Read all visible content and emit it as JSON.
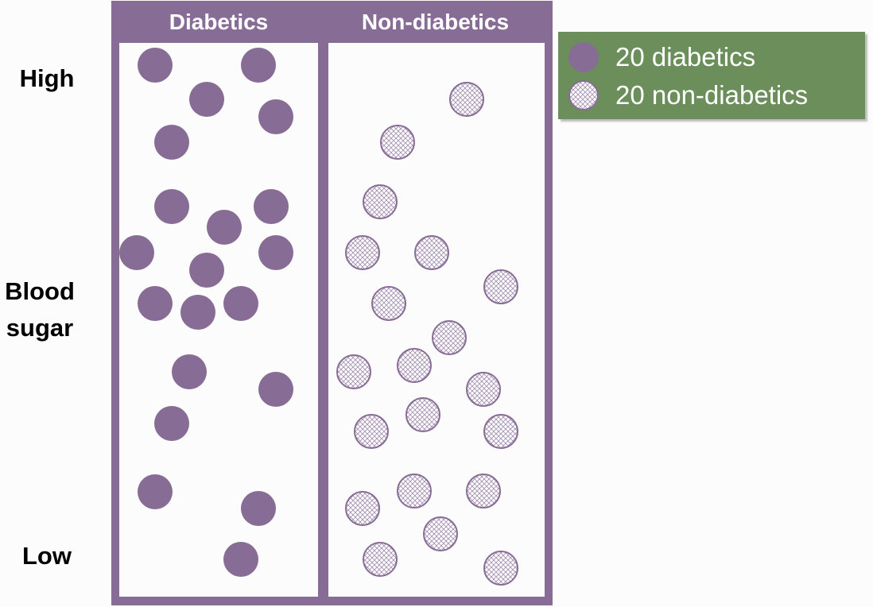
{
  "y_axis": {
    "high_label": "High",
    "middle_label_line1": "Blood",
    "middle_label_line2": "sugar",
    "low_label": "Low"
  },
  "columns": {
    "left_header": "Diabetics",
    "right_header": "Non-diabetics"
  },
  "legend": {
    "diabetics_label": "20 diabetics",
    "non_diabetics_label": "20 non-diabetics"
  },
  "colors": {
    "frame": "#876c95",
    "legend_bg": "#6b8e5a",
    "panel_bg": "#fcfcfc",
    "hatch_fill": "#ffffff"
  }
}
